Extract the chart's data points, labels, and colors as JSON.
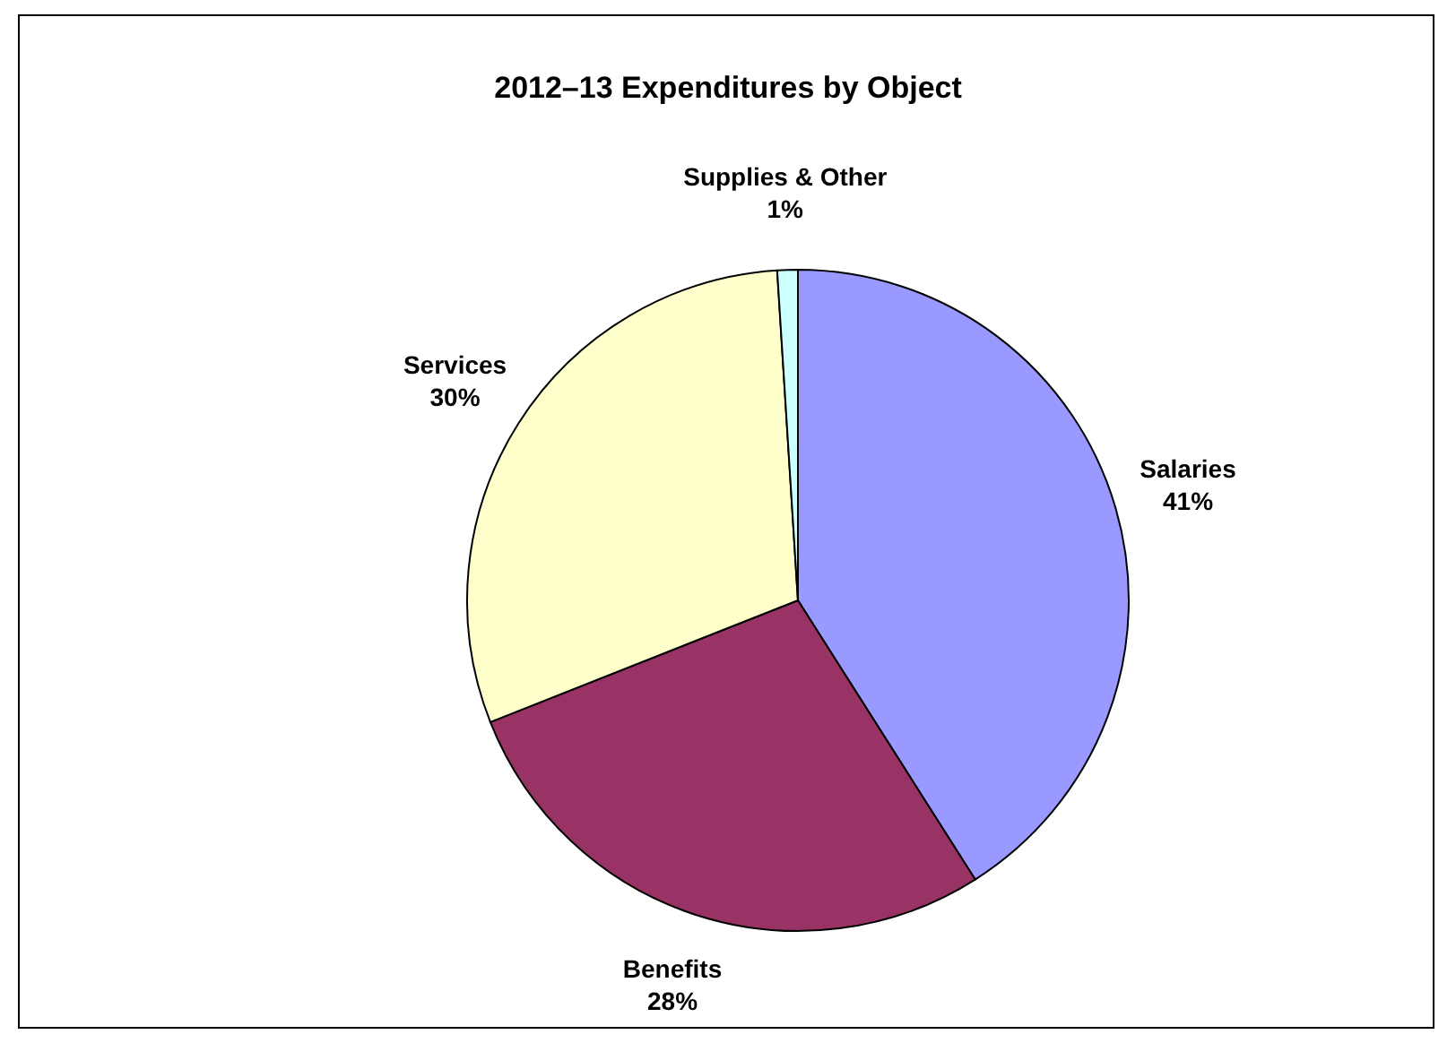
{
  "chart_data": {
    "type": "pie",
    "title": "2012–13 Expenditures by Object",
    "categories": [
      "Salaries",
      "Benefits",
      "Services",
      "Supplies & Other"
    ],
    "values": [
      41,
      28,
      30,
      1
    ],
    "colors": [
      "#9999ff",
      "#993366",
      "#ffffcc",
      "#ccffff"
    ],
    "value_labels": [
      "41%",
      "28%",
      "30%",
      "1%"
    ],
    "legend": false
  }
}
